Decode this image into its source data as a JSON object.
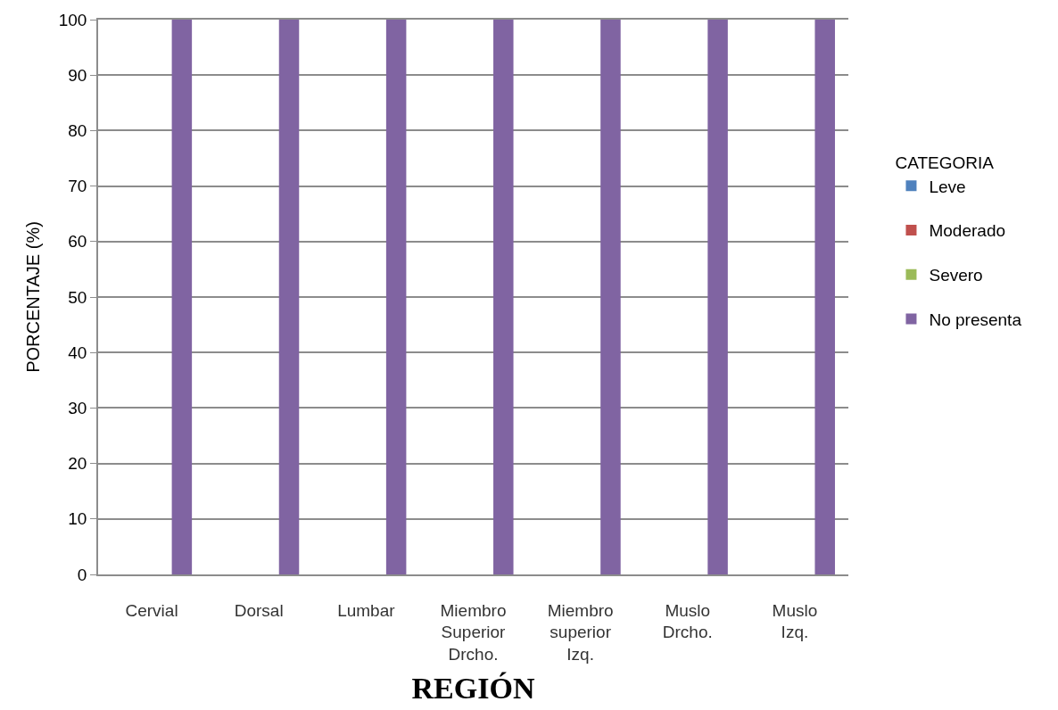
{
  "chart_data": {
    "type": "bar",
    "xlabel": "REGIÓN",
    "ylabel": "PORCENTAJE (%)",
    "legend_title": "CATEGORIA",
    "categories": [
      "Cervial",
      "Dorsal",
      "Lumbar",
      "Miembro Superior Drcho.",
      "Miembro superior Izq.",
      "Muslo Drcho.",
      "Muslo Izq."
    ],
    "series": [
      {
        "name": "Leve",
        "color": "#4f81bd",
        "values": [
          0,
          0,
          0,
          0,
          0,
          0,
          0
        ]
      },
      {
        "name": "Moderado",
        "color": "#c0504d",
        "values": [
          0,
          0,
          0,
          0,
          0,
          0,
          0
        ]
      },
      {
        "name": "Severo",
        "color": "#9bbb59",
        "values": [
          0,
          0,
          0,
          0,
          0,
          0,
          0
        ]
      },
      {
        "name": "No presenta",
        "color": "#8064a2",
        "values": [
          100,
          100,
          100,
          100,
          100,
          100,
          100
        ]
      }
    ],
    "ylim": [
      0,
      100
    ],
    "yticks": [
      0,
      10,
      20,
      30,
      40,
      50,
      60,
      70,
      80,
      90,
      100
    ],
    "grid": "y",
    "legend": "right"
  }
}
